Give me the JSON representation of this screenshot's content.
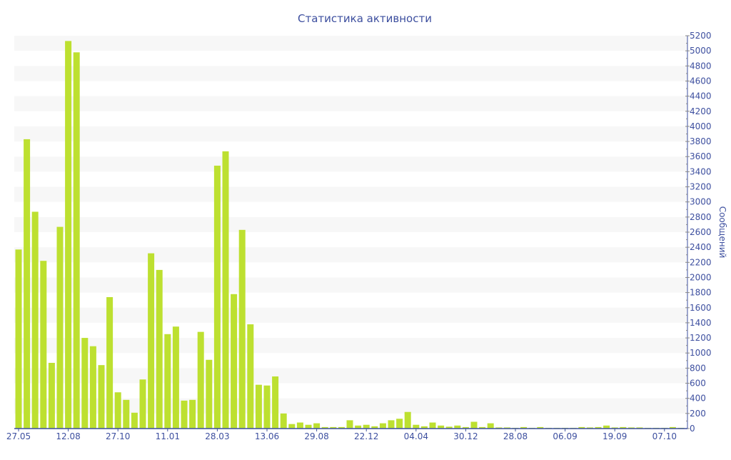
{
  "chart_data": {
    "type": "bar",
    "title": "Статистика активности",
    "xlabel": "",
    "ylabel": "Сообщений",
    "ylim": [
      0,
      5200
    ],
    "ytick_step": 200,
    "grid": "alternating bands",
    "y_axis_side": "right",
    "colors": {
      "bar": "#bde030",
      "text": "#3d4f9f",
      "axis": "#3d4f9f",
      "band": "#f7f7f7"
    },
    "x_tick_labels": [
      "27.05",
      "12.08",
      "27.10",
      "11.01",
      "28.03",
      "13.06",
      "29.08",
      "22.12",
      "04.04",
      "30.12",
      "28.08",
      "06.09",
      "19.09",
      "07.10"
    ],
    "x_tick_every": 6,
    "values": [
      2370,
      3830,
      2870,
      2220,
      870,
      2670,
      5130,
      4980,
      1200,
      1090,
      840,
      1740,
      480,
      380,
      210,
      650,
      2320,
      2100,
      1250,
      1350,
      370,
      380,
      1280,
      910,
      3480,
      3670,
      1780,
      2630,
      1380,
      580,
      570,
      690,
      200,
      60,
      80,
      50,
      70,
      20,
      20,
      20,
      110,
      40,
      50,
      30,
      70,
      110,
      130,
      220,
      50,
      30,
      80,
      40,
      25,
      40,
      20,
      90,
      20,
      70,
      15,
      15,
      10,
      20,
      10,
      20,
      10,
      10,
      10,
      10,
      20,
      15,
      20,
      40,
      15,
      20,
      15,
      15,
      10,
      10,
      10,
      20,
      10
    ]
  }
}
